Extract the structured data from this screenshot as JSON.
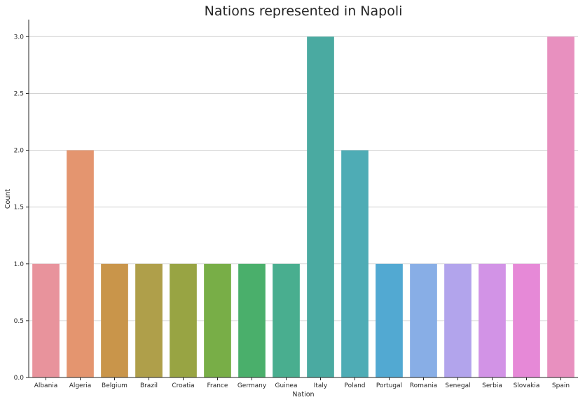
{
  "chart_data": {
    "type": "bar",
    "title": "Nations represented in Napoli",
    "xlabel": "Nation",
    "ylabel": "Count",
    "categories": [
      "Albania",
      "Algeria",
      "Belgium",
      "Brazil",
      "Croatia",
      "France",
      "Germany",
      "Guinea",
      "Italy",
      "Poland",
      "Portugal",
      "Romania",
      "Senegal",
      "Serbia",
      "Slovakia",
      "Spain"
    ],
    "values": [
      1,
      2,
      1,
      1,
      1,
      1,
      1,
      1,
      3,
      2,
      1,
      1,
      1,
      1,
      1,
      3
    ],
    "colors": [
      "#e8939c",
      "#e4956f",
      "#c9954a",
      "#af9f4a",
      "#98a443",
      "#78ae47",
      "#4aaf6b",
      "#49ae8f",
      "#4aaaa1",
      "#4eacb5",
      "#52a9d2",
      "#88aee6",
      "#b2a4ec",
      "#d293e6",
      "#e689d7",
      "#e890bf"
    ],
    "ylim": [
      0,
      3.15
    ],
    "yticks": [
      "0.0",
      "0.5",
      "1.0",
      "1.5",
      "2.0",
      "2.5",
      "3.0"
    ],
    "grid": "horizontal",
    "legend": "none"
  }
}
